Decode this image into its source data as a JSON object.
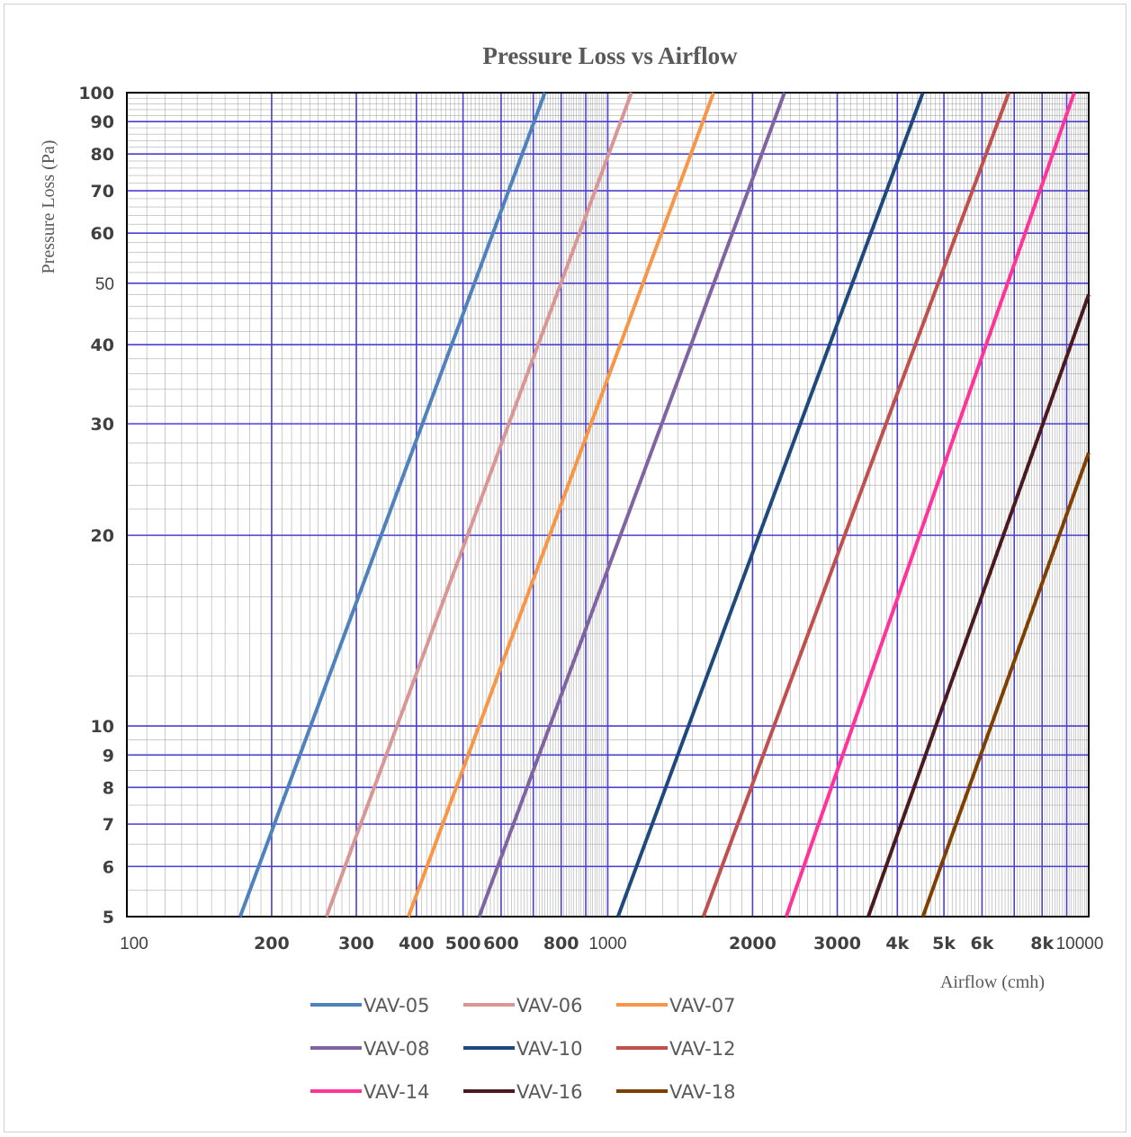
{
  "chart_data": {
    "type": "line",
    "title": "Pressure Loss vs Airflow",
    "xlabel": "Airflow (cmh)",
    "ylabel": "Pressure Loss (Pa)",
    "xscale": "log",
    "yscale": "log",
    "xlim": [
      100,
      10000
    ],
    "ylim": [
      5,
      100
    ],
    "grid": true,
    "legend_position": "bottom",
    "x_ticks": [
      {
        "value": 100,
        "label": "100",
        "bold": false
      },
      {
        "value": 200,
        "label": "200",
        "bold": true
      },
      {
        "value": 300,
        "label": "300",
        "bold": true
      },
      {
        "value": 400,
        "label": "400",
        "bold": true
      },
      {
        "value": 500,
        "label": "500",
        "bold": true
      },
      {
        "value": 600,
        "label": "600",
        "bold": true
      },
      {
        "value": 800,
        "label": "800",
        "bold": true
      },
      {
        "value": 1000,
        "label": "1000",
        "bold": false
      },
      {
        "value": 2000,
        "label": "2000",
        "bold": true
      },
      {
        "value": 3000,
        "label": "3000",
        "bold": true
      },
      {
        "value": 4000,
        "label": "4k",
        "bold": true
      },
      {
        "value": 5000,
        "label": "5k",
        "bold": true
      },
      {
        "value": 6000,
        "label": "6k",
        "bold": true
      },
      {
        "value": 8000,
        "label": "8k",
        "bold": true
      },
      {
        "value": 10000,
        "label": "10000",
        "bold": false
      }
    ],
    "y_ticks": [
      {
        "value": 5,
        "label": "5",
        "bold": true
      },
      {
        "value": 6,
        "label": "6",
        "bold": true
      },
      {
        "value": 7,
        "label": "7",
        "bold": true
      },
      {
        "value": 8,
        "label": "8",
        "bold": true
      },
      {
        "value": 9,
        "label": "9",
        "bold": true
      },
      {
        "value": 10,
        "label": "10",
        "bold": true
      },
      {
        "value": 20,
        "label": "20",
        "bold": true
      },
      {
        "value": 30,
        "label": "30",
        "bold": true
      },
      {
        "value": 40,
        "label": "40",
        "bold": true
      },
      {
        "value": 50,
        "label": "50",
        "bold": false
      },
      {
        "value": 60,
        "label": "60",
        "bold": true
      },
      {
        "value": 70,
        "label": "70",
        "bold": true
      },
      {
        "value": 80,
        "label": "80",
        "bold": true
      },
      {
        "value": 90,
        "label": "90",
        "bold": true
      },
      {
        "value": 100,
        "label": "100",
        "bold": true
      }
    ],
    "series": [
      {
        "name": "VAV-05",
        "color": "#4f81bd",
        "x": [
          172,
          740
        ],
        "y": [
          5,
          100
        ]
      },
      {
        "name": "VAV-06",
        "color": "#d99694",
        "x": [
          260,
          1120
        ],
        "y": [
          5,
          100
        ]
      },
      {
        "name": "VAV-07",
        "color": "#f79646",
        "x": [
          385,
          1660
        ],
        "y": [
          5,
          100
        ]
      },
      {
        "name": "VAV-08",
        "color": "#8064a2",
        "x": [
          540,
          2330
        ],
        "y": [
          5,
          100
        ]
      },
      {
        "name": "VAV-10",
        "color": "#1f497d",
        "x": [
          1050,
          4520
        ],
        "y": [
          5,
          100
        ]
      },
      {
        "name": "VAV-12",
        "color": "#c0504d",
        "x": [
          1580,
          6820
        ],
        "y": [
          5,
          100
        ]
      },
      {
        "name": "VAV-14",
        "color": "#ff3399",
        "x": [
          2350,
          9330
        ],
        "y": [
          5,
          100
        ]
      },
      {
        "name": "VAV-16",
        "color": "#4a1a1f",
        "x": [
          3480,
          10000
        ],
        "y": [
          5,
          48
        ]
      },
      {
        "name": "VAV-18",
        "color": "#7f3f00",
        "x": [
          4520,
          10000
        ],
        "y": [
          5,
          27
        ]
      }
    ]
  }
}
